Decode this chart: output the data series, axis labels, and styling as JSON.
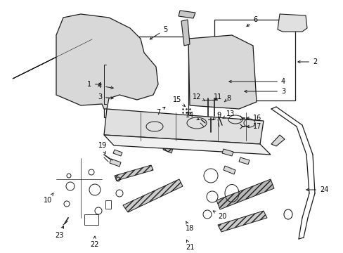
{
  "bg_color": "#ffffff",
  "line_color": "#1a1a1a",
  "fig_width": 4.89,
  "fig_height": 3.6,
  "dpi": 100,
  "label_fontsize": 7.0
}
